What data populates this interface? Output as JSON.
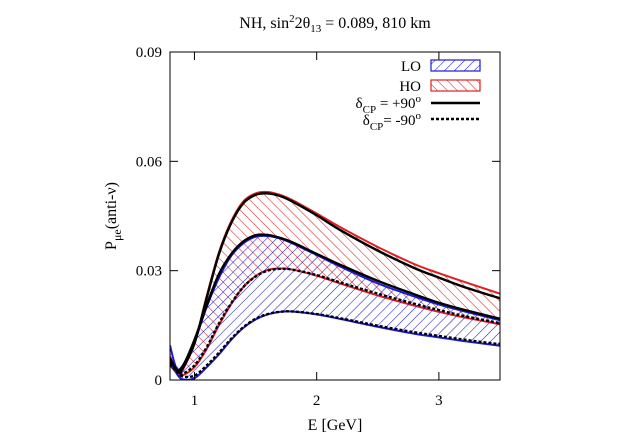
{
  "chart_data": {
    "type": "line",
    "title": {
      "prefix": "NH, sin",
      "sup1": "2",
      "mid": "2θ",
      "sub": "13",
      "suffix": " = 0.089, 810 km"
    },
    "xlabel": "E [GeV]",
    "ylabel": {
      "main": "P",
      "sub": "μe",
      "suffix": "(anti-ν)"
    },
    "xlim": [
      0.8,
      3.5
    ],
    "ylim": [
      0,
      0.09
    ],
    "x_ticks": [
      {
        "value": 1,
        "label": "1"
      },
      {
        "value": 2,
        "label": "2"
      },
      {
        "value": 3,
        "label": "3"
      }
    ],
    "y_ticks": [
      {
        "value": 0,
        "label": "0"
      },
      {
        "value": 0.03,
        "label": "0.03"
      },
      {
        "value": 0.06,
        "label": "0.06"
      },
      {
        "value": 0.09,
        "label": "0.09"
      }
    ],
    "grid": false,
    "legend_position": "top-right",
    "colors": {
      "LO": "#1a1ad6",
      "HO": "#e01e1e",
      "curve": "#000000"
    },
    "legend": [
      {
        "key": "LO",
        "label": "LO",
        "style": "hatch-blue"
      },
      {
        "key": "HO",
        "label": "HO",
        "style": "hatch-red"
      },
      {
        "key": "dplus",
        "label_main": "δ",
        "label_sub": "CP",
        "label_rest": " = +90",
        "label_sup": "o",
        "style": "solid"
      },
      {
        "key": "dminus",
        "label_main": "δ",
        "label_sub": "CP",
        "label_rest": "= -90",
        "label_sup": "o",
        "style": "dashed"
      }
    ],
    "bands": [
      {
        "name": "HO",
        "color": "#e01e1e",
        "upper": {
          "x": [
            0.8,
            0.87,
            0.9,
            1.0,
            1.1,
            1.2,
            1.3,
            1.4,
            1.5,
            1.6,
            1.7,
            1.8,
            2.0,
            2.2,
            2.5,
            2.8,
            3.0,
            3.2,
            3.5
          ],
          "y": [
            0.0065,
            0.0018,
            0.0025,
            0.01,
            0.023,
            0.035,
            0.0435,
            0.049,
            0.0512,
            0.0516,
            0.0508,
            0.0494,
            0.0457,
            0.0418,
            0.0365,
            0.0318,
            0.0293,
            0.027,
            0.0237
          ]
        },
        "lower": {
          "x": [
            0.8,
            0.87,
            0.9,
            1.0,
            1.1,
            1.2,
            1.3,
            1.4,
            1.5,
            1.6,
            1.7,
            1.8,
            2.0,
            2.2,
            2.5,
            2.8,
            3.0,
            3.2,
            3.5
          ],
          "y": [
            0.004,
            0.0015,
            0.0012,
            0.0035,
            0.0085,
            0.015,
            0.0208,
            0.0255,
            0.0285,
            0.0302,
            0.0306,
            0.0303,
            0.0286,
            0.0264,
            0.0232,
            0.0204,
            0.0187,
            0.0172,
            0.0153
          ]
        }
      },
      {
        "name": "LO",
        "color": "#1a1ad6",
        "upper": {
          "x": [
            0.8,
            0.85,
            0.9,
            1.0,
            1.1,
            1.2,
            1.3,
            1.4,
            1.5,
            1.6,
            1.7,
            1.8,
            2.0,
            2.2,
            2.5,
            2.8,
            3.0,
            3.2,
            3.5
          ],
          "y": [
            0.0095,
            0.0035,
            0.0038,
            0.0105,
            0.02,
            0.028,
            0.034,
            0.0375,
            0.0393,
            0.0395,
            0.0388,
            0.0375,
            0.0343,
            0.031,
            0.0265,
            0.0229,
            0.0207,
            0.0189,
            0.0164
          ]
        },
        "lower": {
          "x": [
            0.8,
            0.85,
            0.9,
            1.0,
            1.1,
            1.2,
            1.3,
            1.4,
            1.5,
            1.6,
            1.7,
            1.8,
            2.0,
            2.2,
            2.5,
            2.8,
            3.0,
            3.2,
            3.5
          ],
          "y": [
            0.005,
            0.002,
            0.0002,
            0.0005,
            0.0035,
            0.007,
            0.011,
            0.0143,
            0.0166,
            0.018,
            0.0187,
            0.0188,
            0.018,
            0.0167,
            0.0146,
            0.0127,
            0.0117,
            0.0107,
            0.0094
          ]
        }
      }
    ],
    "series": [
      {
        "style": "solid",
        "x": [
          0.8,
          0.87,
          0.9,
          1.0,
          1.1,
          1.2,
          1.3,
          1.4,
          1.5,
          1.6,
          1.7,
          1.8,
          2.0,
          2.2,
          2.5,
          2.8,
          3.0,
          3.2,
          3.5
        ],
        "y": [
          0.0055,
          0.0022,
          0.003,
          0.01,
          0.0225,
          0.0345,
          0.043,
          0.0485,
          0.0508,
          0.0512,
          0.0505,
          0.049,
          0.0452,
          0.041,
          0.0355,
          0.0307,
          0.0281,
          0.0256,
          0.0224
        ]
      },
      {
        "style": "solid",
        "x": [
          0.8,
          0.85,
          0.9,
          1.0,
          1.1,
          1.2,
          1.3,
          1.4,
          1.5,
          1.6,
          1.7,
          1.8,
          2.0,
          2.2,
          2.5,
          2.8,
          3.0,
          3.2,
          3.5
        ],
        "y": [
          0.006,
          0.003,
          0.0035,
          0.011,
          0.0205,
          0.029,
          0.0345,
          0.038,
          0.0397,
          0.0398,
          0.039,
          0.0378,
          0.0346,
          0.0315,
          0.0272,
          0.0235,
          0.0212,
          0.0193,
          0.0168
        ]
      },
      {
        "style": "dashed",
        "x": [
          0.8,
          0.87,
          0.9,
          1.0,
          1.1,
          1.2,
          1.3,
          1.4,
          1.5,
          1.6,
          1.7,
          1.8,
          2.0,
          2.2,
          2.5,
          2.8,
          3.0,
          3.2,
          3.5
        ],
        "y": [
          0.0045,
          0.0018,
          0.0016,
          0.004,
          0.009,
          0.0155,
          0.021,
          0.0255,
          0.0284,
          0.03,
          0.0305,
          0.0303,
          0.0288,
          0.0267,
          0.0237,
          0.0209,
          0.0192,
          0.0176,
          0.0156
        ]
      },
      {
        "style": "dashed",
        "x": [
          0.8,
          0.87,
          0.9,
          1.0,
          1.1,
          1.2,
          1.3,
          1.4,
          1.5,
          1.6,
          1.7,
          1.8,
          2.0,
          2.2,
          2.5,
          2.8,
          3.0,
          3.2,
          3.5
        ],
        "y": [
          0.0042,
          0.0022,
          0.001,
          0.0012,
          0.004,
          0.0075,
          0.0113,
          0.0145,
          0.0168,
          0.0181,
          0.0187,
          0.0188,
          0.0181,
          0.0169,
          0.0149,
          0.0131,
          0.0121,
          0.0111,
          0.0098
        ]
      }
    ]
  }
}
